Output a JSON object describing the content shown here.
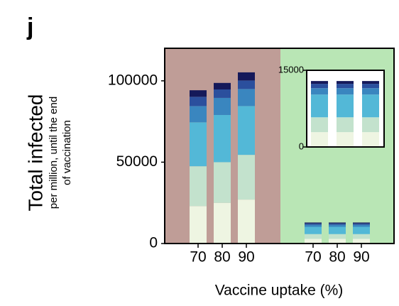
{
  "panel_label": "j",
  "chart_data": [
    {
      "type": "bar",
      "stacked": true,
      "ylabel": "Total infected",
      "ylabel_sub": [
        "per million, until the end",
        "of vaccination"
      ],
      "xlabel": "Vaccine uptake (%)",
      "categories": [
        "70",
        "80",
        "90",
        "70",
        "80",
        "90"
      ],
      "background_colors": [
        "#bf9d97",
        "#b9e6b5"
      ],
      "ylim": [
        0,
        120000
      ],
      "yticks": [
        0,
        50000,
        100000
      ],
      "series": [
        {
          "color": "#eef5e2",
          "values": [
            23000,
            25000,
            27000,
            2900,
            2900,
            2900
          ]
        },
        {
          "color": "#c3e2cd",
          "values": [
            24500,
            25000,
            27500,
            2900,
            2900,
            2900
          ]
        },
        {
          "color": "#53b8d7",
          "values": [
            27000,
            29000,
            30000,
            4450,
            4450,
            4450
          ]
        },
        {
          "color": "#3a86bf",
          "values": [
            10000,
            10500,
            10500,
            1250,
            1250,
            1250
          ]
        },
        {
          "color": "#2b4f9d",
          "values": [
            5700,
            5200,
            5200,
            850,
            850,
            850
          ]
        },
        {
          "color": "#15195a",
          "values": [
            4000,
            4000,
            5000,
            550,
            550,
            550
          ]
        }
      ]
    },
    {
      "type": "bar",
      "stacked": true,
      "categories": [
        null,
        null,
        null
      ],
      "ylim": [
        0,
        15000
      ],
      "yticks": [
        0,
        15000
      ],
      "series": [
        {
          "color": "#eef5e2",
          "values": [
            2900,
            2900,
            2900
          ]
        },
        {
          "color": "#c3e2cd",
          "values": [
            2900,
            2900,
            2900
          ]
        },
        {
          "color": "#53b8d7",
          "values": [
            4450,
            4450,
            4450
          ]
        },
        {
          "color": "#3a86bf",
          "values": [
            1250,
            1250,
            1250
          ]
        },
        {
          "color": "#2b4f9d",
          "values": [
            850,
            850,
            850
          ]
        },
        {
          "color": "#15195a",
          "values": [
            550,
            550,
            550
          ]
        }
      ]
    }
  ]
}
